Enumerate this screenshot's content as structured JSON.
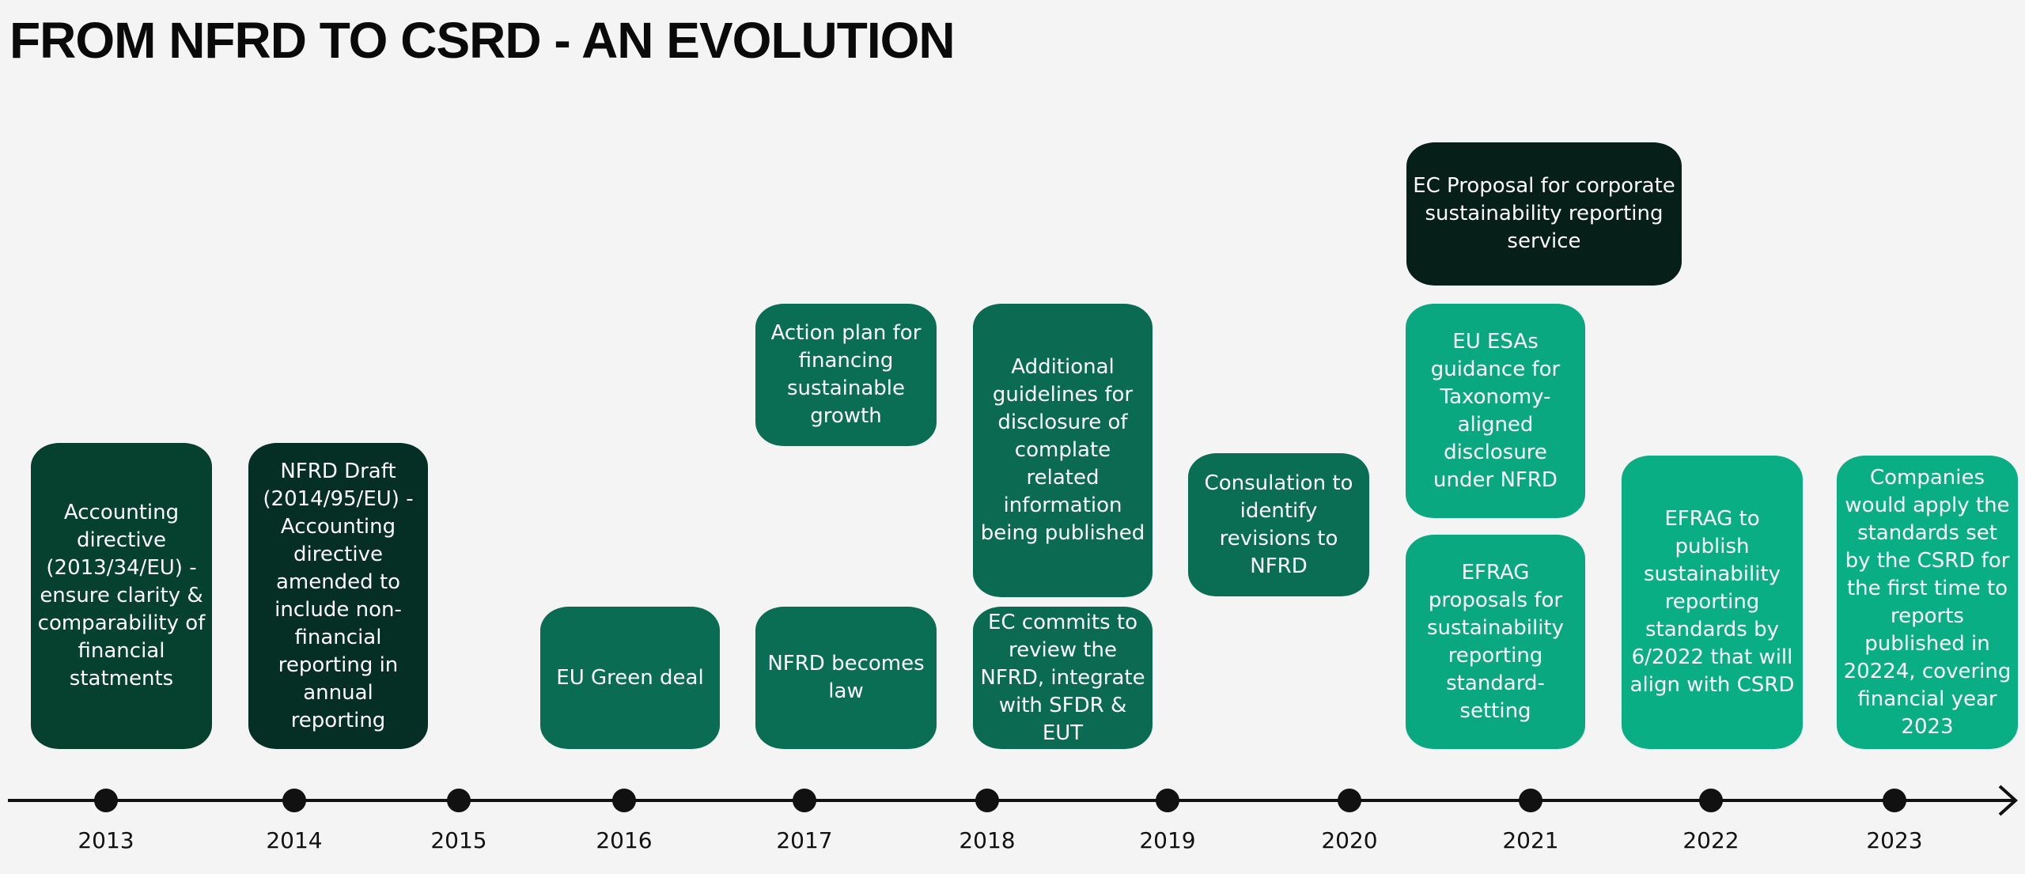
{
  "title": "FROM NFRD TO CSRD - AN EVOLUTION",
  "timeline": {
    "years": [
      "2013",
      "2014",
      "2015",
      "2016",
      "2017",
      "2018",
      "2019",
      "2020",
      "2021",
      "2022",
      "2023"
    ]
  },
  "events": [
    {
      "text": "Accounting directive (2013/34/EU) - ensure clarity & comparability of financial statments"
    },
    {
      "text": "NFRD Draft (2014/95/EU) - Accounting directive amended to include non-financial reporting in annual reporting"
    },
    {
      "text": "EU Green deal"
    },
    {
      "text": "NFRD becomes law"
    },
    {
      "text": "Action plan for financing sustainable growth"
    },
    {
      "text": "Additional guidelines for disclosure of complate related information being published"
    },
    {
      "text": "EC commits to review the NFRD, integrate with SFDR & EUT"
    },
    {
      "text": "Consulation to identify revisions to NFRD"
    },
    {
      "text": "EC Proposal for corporate sustainability reporting service"
    },
    {
      "text": "EU ESAs guidance for Taxonomy-aligned disclosure under NFRD"
    },
    {
      "text": "EFRAG proposals for sustainability reporting standard-setting"
    },
    {
      "text": "EFRAG to publish sustainability reporting standards by 6/2022 that will align with CSRD"
    },
    {
      "text": "Companies would apply the standards set by the CSRD for the first time to reports published in 20224, covering financial year 2023"
    }
  ]
}
